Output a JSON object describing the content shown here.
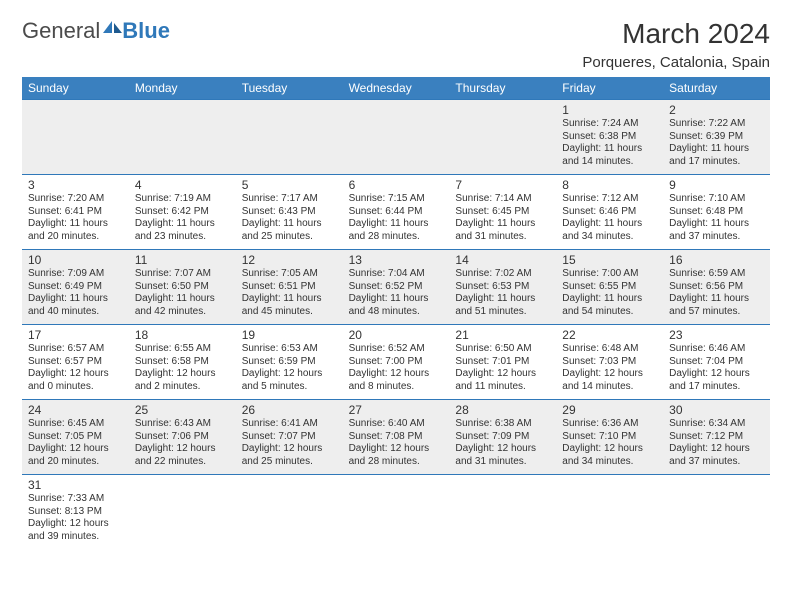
{
  "brand": {
    "general": "General",
    "blue": "Blue"
  },
  "header": {
    "title": "March 2024",
    "location": "Porqueres, Catalonia, Spain"
  },
  "colors": {
    "header_bg": "#3a80bf",
    "header_fg": "#ffffff",
    "cell_border": "#2f78b9",
    "alt_row_bg": "#eeeeee",
    "text": "#333333"
  },
  "weekdays": [
    "Sunday",
    "Monday",
    "Tuesday",
    "Wednesday",
    "Thursday",
    "Friday",
    "Saturday"
  ],
  "weeks": [
    [
      null,
      null,
      null,
      null,
      null,
      {
        "n": "1",
        "sunrise": "Sunrise: 7:24 AM",
        "sunset": "Sunset: 6:38 PM",
        "day1": "Daylight: 11 hours",
        "day2": "and 14 minutes."
      },
      {
        "n": "2",
        "sunrise": "Sunrise: 7:22 AM",
        "sunset": "Sunset: 6:39 PM",
        "day1": "Daylight: 11 hours",
        "day2": "and 17 minutes."
      }
    ],
    [
      {
        "n": "3",
        "sunrise": "Sunrise: 7:20 AM",
        "sunset": "Sunset: 6:41 PM",
        "day1": "Daylight: 11 hours",
        "day2": "and 20 minutes."
      },
      {
        "n": "4",
        "sunrise": "Sunrise: 7:19 AM",
        "sunset": "Sunset: 6:42 PM",
        "day1": "Daylight: 11 hours",
        "day2": "and 23 minutes."
      },
      {
        "n": "5",
        "sunrise": "Sunrise: 7:17 AM",
        "sunset": "Sunset: 6:43 PM",
        "day1": "Daylight: 11 hours",
        "day2": "and 25 minutes."
      },
      {
        "n": "6",
        "sunrise": "Sunrise: 7:15 AM",
        "sunset": "Sunset: 6:44 PM",
        "day1": "Daylight: 11 hours",
        "day2": "and 28 minutes."
      },
      {
        "n": "7",
        "sunrise": "Sunrise: 7:14 AM",
        "sunset": "Sunset: 6:45 PM",
        "day1": "Daylight: 11 hours",
        "day2": "and 31 minutes."
      },
      {
        "n": "8",
        "sunrise": "Sunrise: 7:12 AM",
        "sunset": "Sunset: 6:46 PM",
        "day1": "Daylight: 11 hours",
        "day2": "and 34 minutes."
      },
      {
        "n": "9",
        "sunrise": "Sunrise: 7:10 AM",
        "sunset": "Sunset: 6:48 PM",
        "day1": "Daylight: 11 hours",
        "day2": "and 37 minutes."
      }
    ],
    [
      {
        "n": "10",
        "sunrise": "Sunrise: 7:09 AM",
        "sunset": "Sunset: 6:49 PM",
        "day1": "Daylight: 11 hours",
        "day2": "and 40 minutes."
      },
      {
        "n": "11",
        "sunrise": "Sunrise: 7:07 AM",
        "sunset": "Sunset: 6:50 PM",
        "day1": "Daylight: 11 hours",
        "day2": "and 42 minutes."
      },
      {
        "n": "12",
        "sunrise": "Sunrise: 7:05 AM",
        "sunset": "Sunset: 6:51 PM",
        "day1": "Daylight: 11 hours",
        "day2": "and 45 minutes."
      },
      {
        "n": "13",
        "sunrise": "Sunrise: 7:04 AM",
        "sunset": "Sunset: 6:52 PM",
        "day1": "Daylight: 11 hours",
        "day2": "and 48 minutes."
      },
      {
        "n": "14",
        "sunrise": "Sunrise: 7:02 AM",
        "sunset": "Sunset: 6:53 PM",
        "day1": "Daylight: 11 hours",
        "day2": "and 51 minutes."
      },
      {
        "n": "15",
        "sunrise": "Sunrise: 7:00 AM",
        "sunset": "Sunset: 6:55 PM",
        "day1": "Daylight: 11 hours",
        "day2": "and 54 minutes."
      },
      {
        "n": "16",
        "sunrise": "Sunrise: 6:59 AM",
        "sunset": "Sunset: 6:56 PM",
        "day1": "Daylight: 11 hours",
        "day2": "and 57 minutes."
      }
    ],
    [
      {
        "n": "17",
        "sunrise": "Sunrise: 6:57 AM",
        "sunset": "Sunset: 6:57 PM",
        "day1": "Daylight: 12 hours",
        "day2": "and 0 minutes."
      },
      {
        "n": "18",
        "sunrise": "Sunrise: 6:55 AM",
        "sunset": "Sunset: 6:58 PM",
        "day1": "Daylight: 12 hours",
        "day2": "and 2 minutes."
      },
      {
        "n": "19",
        "sunrise": "Sunrise: 6:53 AM",
        "sunset": "Sunset: 6:59 PM",
        "day1": "Daylight: 12 hours",
        "day2": "and 5 minutes."
      },
      {
        "n": "20",
        "sunrise": "Sunrise: 6:52 AM",
        "sunset": "Sunset: 7:00 PM",
        "day1": "Daylight: 12 hours",
        "day2": "and 8 minutes."
      },
      {
        "n": "21",
        "sunrise": "Sunrise: 6:50 AM",
        "sunset": "Sunset: 7:01 PM",
        "day1": "Daylight: 12 hours",
        "day2": "and 11 minutes."
      },
      {
        "n": "22",
        "sunrise": "Sunrise: 6:48 AM",
        "sunset": "Sunset: 7:03 PM",
        "day1": "Daylight: 12 hours",
        "day2": "and 14 minutes."
      },
      {
        "n": "23",
        "sunrise": "Sunrise: 6:46 AM",
        "sunset": "Sunset: 7:04 PM",
        "day1": "Daylight: 12 hours",
        "day2": "and 17 minutes."
      }
    ],
    [
      {
        "n": "24",
        "sunrise": "Sunrise: 6:45 AM",
        "sunset": "Sunset: 7:05 PM",
        "day1": "Daylight: 12 hours",
        "day2": "and 20 minutes."
      },
      {
        "n": "25",
        "sunrise": "Sunrise: 6:43 AM",
        "sunset": "Sunset: 7:06 PM",
        "day1": "Daylight: 12 hours",
        "day2": "and 22 minutes."
      },
      {
        "n": "26",
        "sunrise": "Sunrise: 6:41 AM",
        "sunset": "Sunset: 7:07 PM",
        "day1": "Daylight: 12 hours",
        "day2": "and 25 minutes."
      },
      {
        "n": "27",
        "sunrise": "Sunrise: 6:40 AM",
        "sunset": "Sunset: 7:08 PM",
        "day1": "Daylight: 12 hours",
        "day2": "and 28 minutes."
      },
      {
        "n": "28",
        "sunrise": "Sunrise: 6:38 AM",
        "sunset": "Sunset: 7:09 PM",
        "day1": "Daylight: 12 hours",
        "day2": "and 31 minutes."
      },
      {
        "n": "29",
        "sunrise": "Sunrise: 6:36 AM",
        "sunset": "Sunset: 7:10 PM",
        "day1": "Daylight: 12 hours",
        "day2": "and 34 minutes."
      },
      {
        "n": "30",
        "sunrise": "Sunrise: 6:34 AM",
        "sunset": "Sunset: 7:12 PM",
        "day1": "Daylight: 12 hours",
        "day2": "and 37 minutes."
      }
    ],
    [
      {
        "n": "31",
        "sunrise": "Sunrise: 7:33 AM",
        "sunset": "Sunset: 8:13 PM",
        "day1": "Daylight: 12 hours",
        "day2": "and 39 minutes."
      },
      null,
      null,
      null,
      null,
      null,
      null
    ]
  ]
}
